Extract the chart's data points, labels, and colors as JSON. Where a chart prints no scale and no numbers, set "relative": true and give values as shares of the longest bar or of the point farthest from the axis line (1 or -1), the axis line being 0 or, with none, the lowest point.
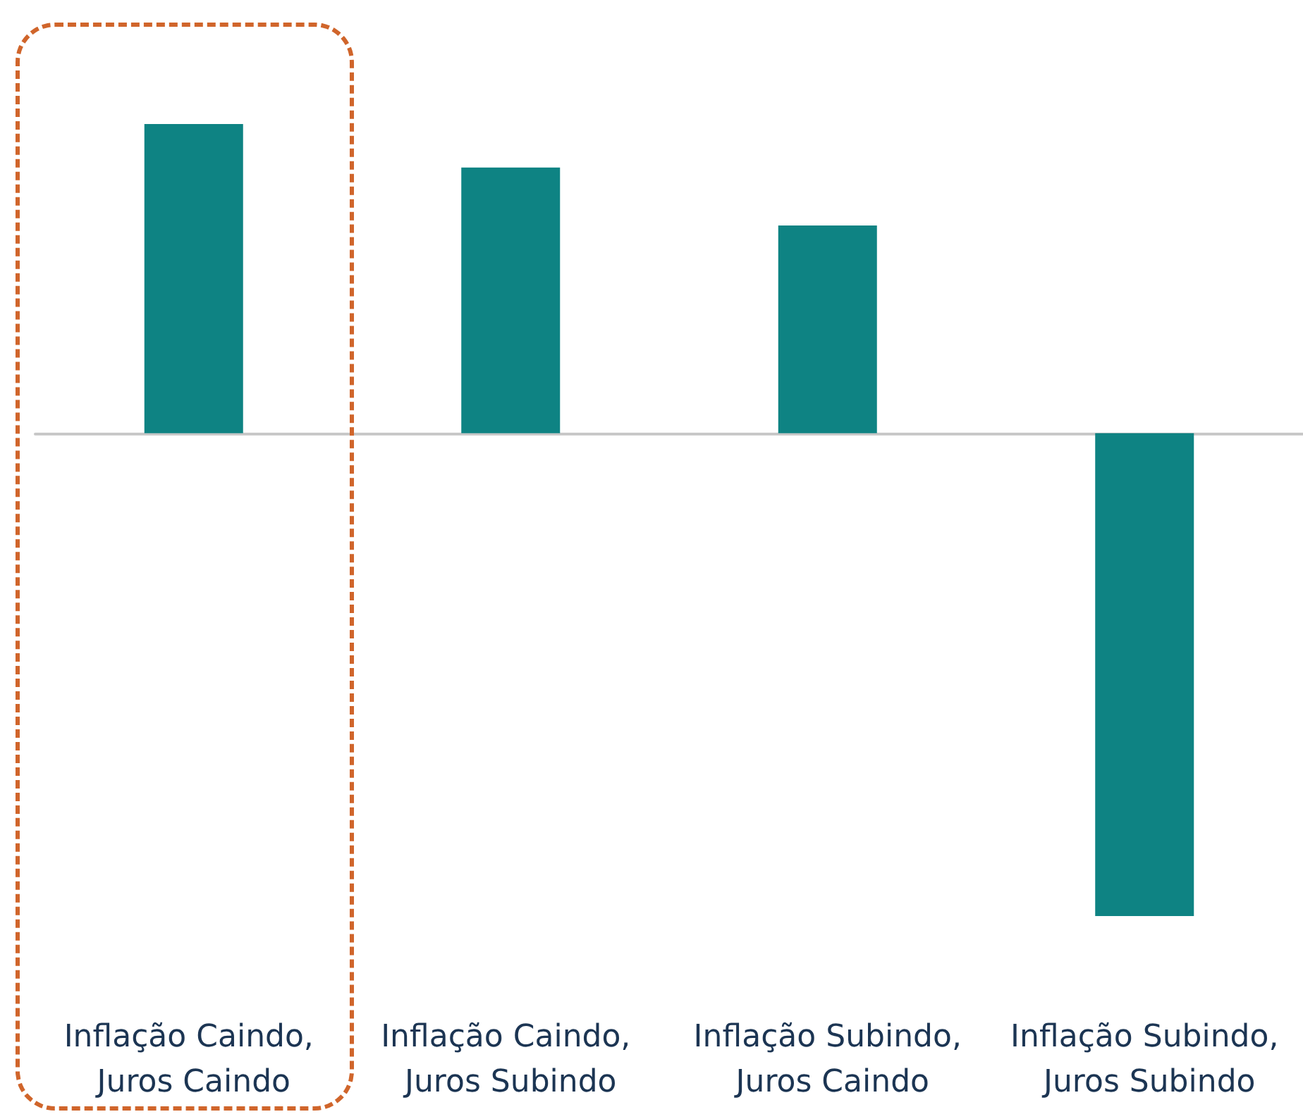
{
  "chart_data": {
    "type": "bar",
    "relative": true,
    "categories": [
      "Inflação Caindo, Juros Caindo",
      "Inflação Caindo, Juros Subindo",
      "Inflação Subindo, Juros Caindo",
      "Inflação Subindo, Juros Subindo"
    ],
    "values": [
      0.64,
      0.55,
      0.43,
      -1
    ],
    "color": "#0e8383"
  }
}
